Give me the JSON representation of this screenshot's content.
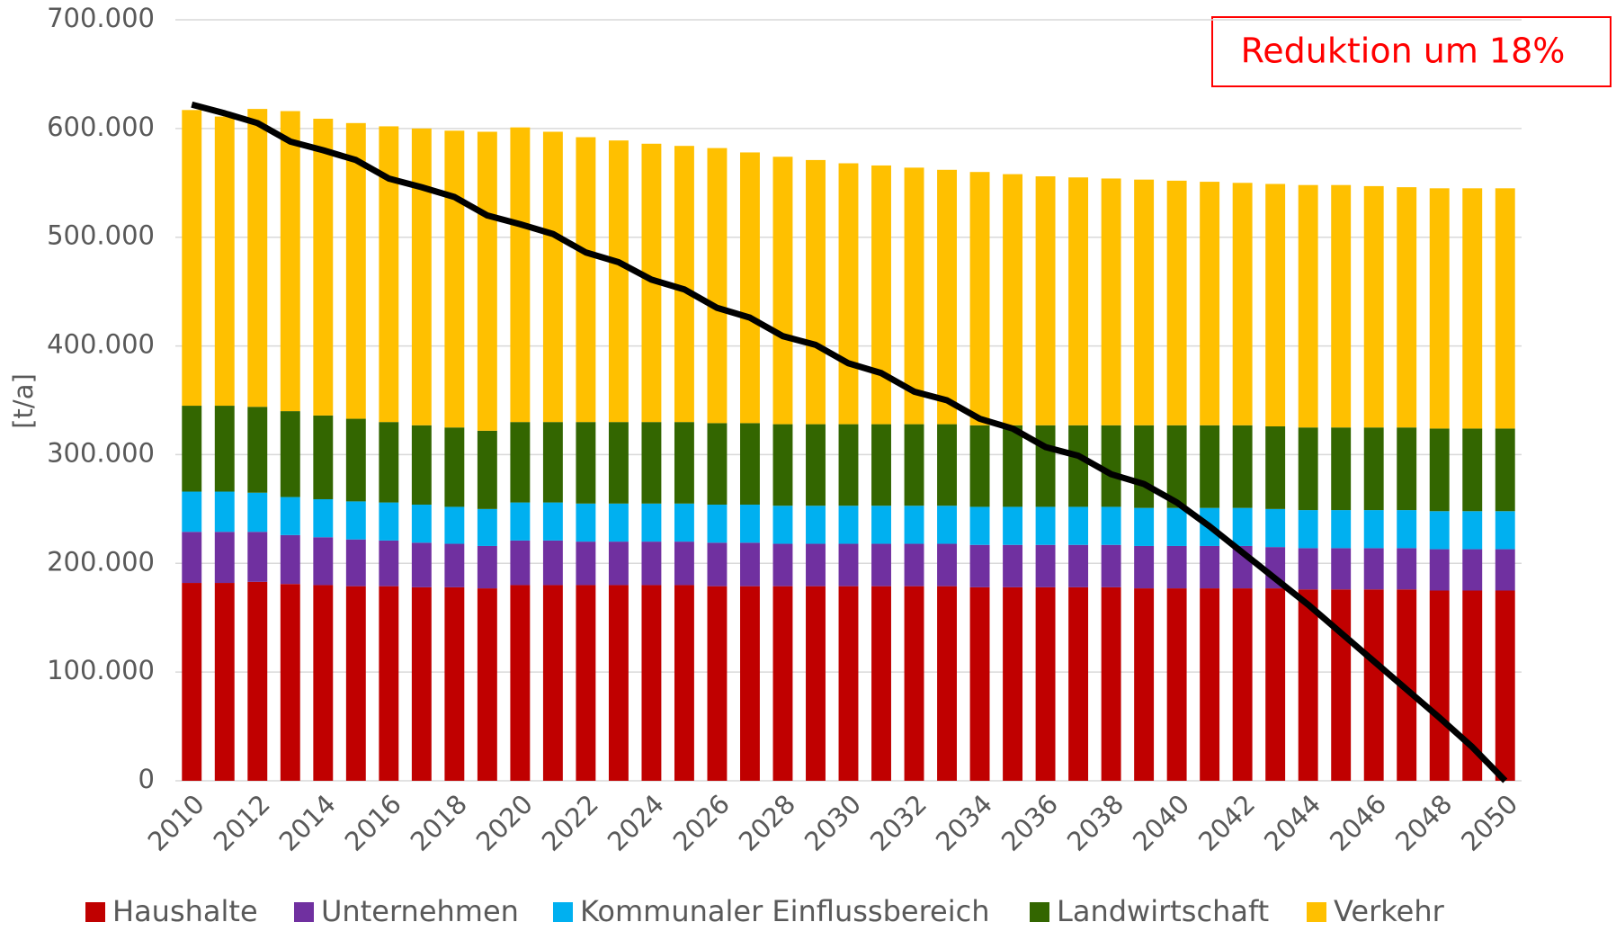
{
  "chart_data": {
    "type": "bar",
    "stacked": true,
    "ylabel": "[t/a]",
    "annotation": "Reduktion um 18%",
    "annotation_color": "#ff0000",
    "categories": [
      "2010",
      null,
      "2012",
      null,
      "2014",
      null,
      "2016",
      null,
      "2018",
      null,
      "2020",
      null,
      "2022",
      null,
      "2024",
      null,
      "2026",
      null,
      "2028",
      null,
      "2030",
      null,
      "2032",
      null,
      "2034",
      null,
      "2036",
      null,
      "2038",
      null,
      "2040",
      null,
      "2042",
      null,
      "2044",
      null,
      "2046",
      null,
      "2048",
      null,
      "2050"
    ],
    "series": [
      {
        "name": "Haushalte",
        "color": "#c00000",
        "values": [
          182000,
          182000,
          183000,
          181000,
          180000,
          179000,
          179000,
          178000,
          178000,
          177000,
          180000,
          180000,
          180000,
          180000,
          180000,
          180000,
          179000,
          179000,
          179000,
          179000,
          179000,
          179000,
          179000,
          179000,
          178000,
          178000,
          178000,
          178000,
          178000,
          177000,
          177000,
          177000,
          177000,
          177000,
          176000,
          176000,
          176000,
          176000,
          175000,
          175000,
          175000
        ]
      },
      {
        "name": "Unternehmen",
        "color": "#7030a0",
        "values": [
          47000,
          47000,
          46000,
          45000,
          44000,
          43000,
          42000,
          41000,
          40000,
          39000,
          41000,
          41000,
          40000,
          40000,
          40000,
          40000,
          40000,
          40000,
          39000,
          39000,
          39000,
          39000,
          39000,
          39000,
          39000,
          39000,
          39000,
          39000,
          39000,
          39000,
          39000,
          39000,
          39000,
          38000,
          38000,
          38000,
          38000,
          38000,
          38000,
          38000,
          38000
        ]
      },
      {
        "name": "Kommunaler Einflussbereich",
        "color": "#00b0f0",
        "values": [
          37000,
          37000,
          36000,
          35000,
          35000,
          35000,
          35000,
          35000,
          34000,
          34000,
          35000,
          35000,
          35000,
          35000,
          35000,
          35000,
          35000,
          35000,
          35000,
          35000,
          35000,
          35000,
          35000,
          35000,
          35000,
          35000,
          35000,
          35000,
          35000,
          35000,
          35000,
          35000,
          35000,
          35000,
          35000,
          35000,
          35000,
          35000,
          35000,
          35000,
          35000
        ]
      },
      {
        "name": "Landwirtschaft",
        "color": "#336600",
        "values": [
          79000,
          79000,
          79000,
          79000,
          77000,
          76000,
          74000,
          73000,
          73000,
          72000,
          74000,
          74000,
          75000,
          75000,
          75000,
          75000,
          75000,
          75000,
          75000,
          75000,
          75000,
          75000,
          75000,
          75000,
          75000,
          75000,
          75000,
          75000,
          75000,
          76000,
          76000,
          76000,
          76000,
          76000,
          76000,
          76000,
          76000,
          76000,
          76000,
          76000,
          76000
        ]
      },
      {
        "name": "Verkehr",
        "color": "#ffc000",
        "values": [
          272000,
          266000,
          274000,
          276000,
          273000,
          272000,
          272000,
          273000,
          273000,
          275000,
          271000,
          267000,
          262000,
          259000,
          256000,
          254000,
          253000,
          249000,
          246000,
          243000,
          240000,
          238000,
          236000,
          234000,
          233000,
          231000,
          229000,
          228000,
          227000,
          226000,
          225000,
          224000,
          223000,
          223000,
          223000,
          223000,
          222000,
          221000,
          221000,
          221000,
          221000
        ]
      }
    ],
    "line": {
      "color": "#000000",
      "values": [
        622000,
        614000,
        605000,
        588000,
        580000,
        571000,
        554000,
        546000,
        537000,
        520000,
        512000,
        503000,
        486000,
        477000,
        461000,
        452000,
        435000,
        426000,
        409000,
        401000,
        384000,
        375000,
        358000,
        350000,
        333000,
        324000,
        307000,
        299000,
        282000,
        273000,
        256000,
        234000,
        210000,
        186000,
        162000,
        136000,
        110000,
        84000,
        58000,
        31000,
        0
      ]
    },
    "ylim": [
      0,
      700000
    ],
    "yticks": [
      0,
      {
        "value": 100000,
        "label": "100.000"
      },
      {
        "value": 200000,
        "label": "200.000"
      },
      {
        "value": 300000,
        "label": "300.000"
      },
      {
        "value": 400000,
        "label": "400.000"
      },
      {
        "value": 500000,
        "label": "500.000"
      },
      {
        "value": 600000,
        "label": "600.000"
      },
      {
        "value": 700000,
        "label": "700.000"
      }
    ],
    "grid": true
  }
}
